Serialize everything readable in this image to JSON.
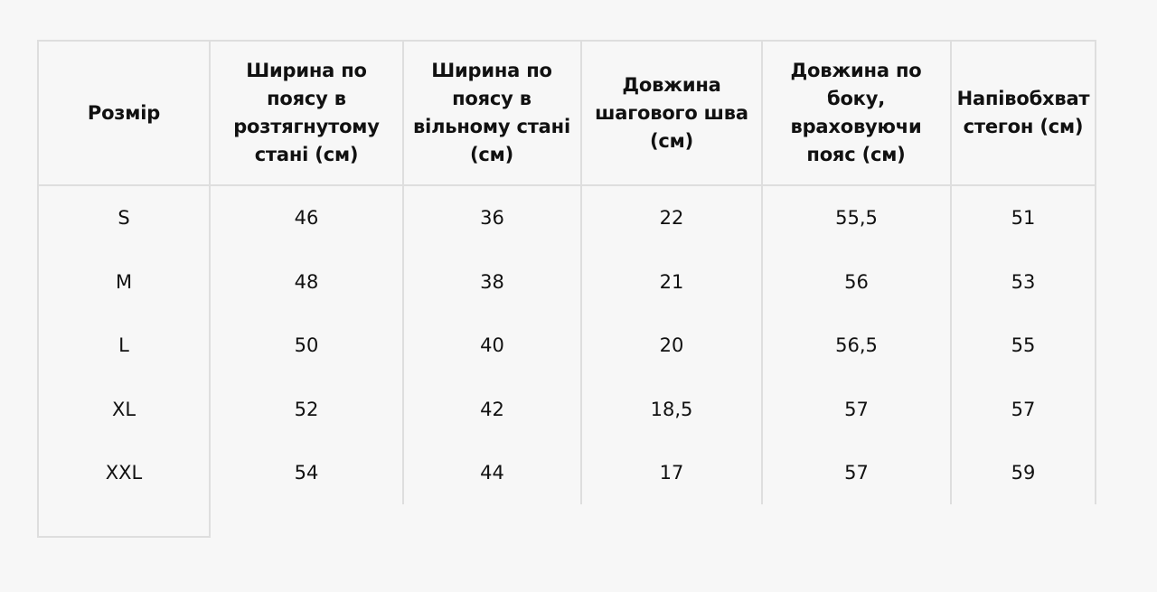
{
  "table": {
    "headers": [
      "Розмір",
      "Ширина по поясу в розтягнутому стані (см)",
      "Ширина по поясу в вільному стані (см)",
      "Довжина шагового шва (см)",
      "Довжина по боку, враховуючи пояс (см)",
      "Напівобхват стегон (см)"
    ],
    "rows": [
      [
        "S",
        "46",
        "36",
        "22",
        "55,5",
        "51"
      ],
      [
        "M",
        "48",
        "38",
        "21",
        "56",
        "53"
      ],
      [
        "L",
        "50",
        "40",
        "20",
        "56,5",
        "55"
      ],
      [
        "XL",
        "52",
        "42",
        "18,5",
        "57",
        "57"
      ],
      [
        "XXL",
        "54",
        "44",
        "17",
        "57",
        "59"
      ]
    ]
  }
}
